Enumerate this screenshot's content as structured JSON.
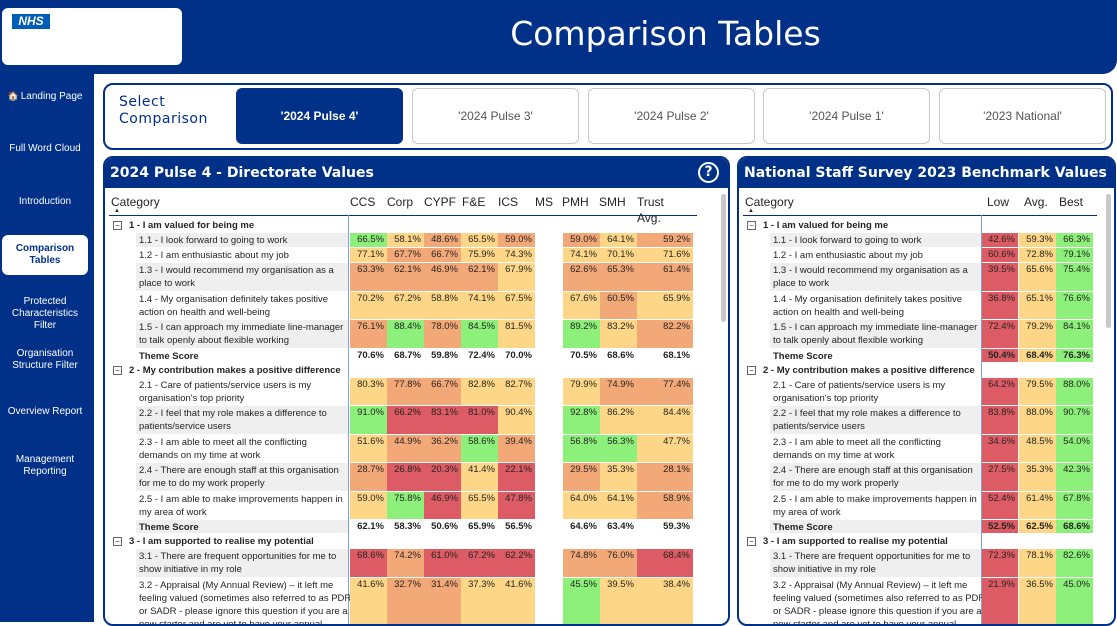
{
  "app": {
    "logo_text": "NHS",
    "title": "Comparison Tables"
  },
  "sidebar": {
    "items": [
      {
        "label": "Landing Page",
        "icon": "home-icon"
      },
      {
        "label": "Full Word Cloud"
      },
      {
        "label": "Introduction"
      },
      {
        "label": "Comparison Tables",
        "active": true
      },
      {
        "label": "Protected Characteristics Filter"
      },
      {
        "label": "Organisation Structure Filter"
      },
      {
        "label": "Overview Report"
      },
      {
        "label": "Management Reporting"
      }
    ]
  },
  "compare": {
    "label": "Select Comparison",
    "options": [
      "'2024 Pulse 4'",
      "'2024 Pulse 3'",
      "'2024 Pulse 2'",
      "'2024 Pulse 1'",
      "'2023 National'"
    ],
    "selected_index": 0
  },
  "colors": {
    "brand": "#003087",
    "green": "#8cf07a",
    "yellow": "#fdd687",
    "orange": "#f3a878",
    "red": "#dd5b64",
    "stripe": "#efefef"
  },
  "left": {
    "title": "2024 Pulse 4 - Directorate Values",
    "columns": [
      "Category",
      "CCS",
      "Corp",
      "CYPF",
      "F&E",
      "ICS",
      "MS",
      "PMH",
      "SMH",
      "Trust Avg."
    ],
    "rows": [
      {
        "type": "theme",
        "label": "1 - I am valued for being me"
      },
      {
        "type": "q",
        "label": [
          "1.1 - I look forward to going to work"
        ],
        "values": [
          "66.5%",
          "58.1%",
          "48.6%",
          "65.5%",
          "59.0%",
          "",
          "59.0%",
          "64.1%",
          "59.2%"
        ],
        "colors": [
          "g",
          "y",
          "o",
          "y",
          "o",
          "",
          "o",
          "y",
          "o"
        ]
      },
      {
        "type": "q",
        "label": [
          "1.2 - I am enthusiastic about my job"
        ],
        "values": [
          "77.1%",
          "67.7%",
          "66.7%",
          "75.9%",
          "74.3%",
          "",
          "74.1%",
          "70.1%",
          "71.6%"
        ],
        "colors": [
          "y",
          "o",
          "o",
          "y",
          "y",
          "",
          "y",
          "y",
          "y"
        ]
      },
      {
        "type": "q",
        "label": [
          "1.3 - I would recommend my organisation as a",
          "place to work"
        ],
        "values": [
          "63.3%",
          "62.1%",
          "46.9%",
          "62.1%",
          "67.9%",
          "",
          "62.6%",
          "65.3%",
          "61.4%"
        ],
        "colors": [
          "o",
          "o",
          "o",
          "o",
          "y",
          "",
          "o",
          "o",
          "o"
        ]
      },
      {
        "type": "q",
        "label": [
          "1.4 - My organisation definitely takes positive",
          "action on health and well-being"
        ],
        "values": [
          "70.2%",
          "67.2%",
          "58.8%",
          "74.1%",
          "67.5%",
          "",
          "67.6%",
          "60.5%",
          "65.9%"
        ],
        "colors": [
          "y",
          "y",
          "y",
          "y",
          "y",
          "",
          "y",
          "o",
          "y"
        ]
      },
      {
        "type": "q",
        "label": [
          "1.5 - I can approach my immediate line-manager",
          "to talk openly about flexible working"
        ],
        "values": [
          "76.1%",
          "88.4%",
          "78.0%",
          "84.5%",
          "81.5%",
          "",
          "89.2%",
          "83.2%",
          "82.2%"
        ],
        "colors": [
          "o",
          "g",
          "o",
          "g",
          "y",
          "",
          "g",
          "y",
          "o"
        ]
      },
      {
        "type": "score",
        "label": [
          "Theme Score"
        ],
        "values": [
          "70.6%",
          "68.7%",
          "59.8%",
          "72.4%",
          "70.0%",
          "",
          "70.5%",
          "68.6%",
          "68.1%"
        ]
      },
      {
        "type": "theme",
        "label": "2 - My contribution makes a positive difference"
      },
      {
        "type": "q",
        "label": [
          "2.1 - Care of patients/service users is my",
          "organisation's top priority"
        ],
        "values": [
          "80.3%",
          "77.8%",
          "66.7%",
          "82.8%",
          "82.7%",
          "",
          "79.9%",
          "74.9%",
          "77.4%"
        ],
        "colors": [
          "y",
          "o",
          "o",
          "y",
          "y",
          "",
          "y",
          "o",
          "o"
        ]
      },
      {
        "type": "q",
        "label": [
          "2.2 - I feel that my role makes a difference to",
          "patients/service users"
        ],
        "values": [
          "91.0%",
          "66.2%",
          "83.1%",
          "81.0%",
          "90.4%",
          "",
          "92.8%",
          "86.2%",
          "84.4%"
        ],
        "colors": [
          "g",
          "r",
          "r",
          "r",
          "y",
          "",
          "g",
          "y",
          "y"
        ]
      },
      {
        "type": "q",
        "label": [
          "2.3 - I am able to meet all the conflicting",
          "demands on my time at work"
        ],
        "values": [
          "51.6%",
          "44.9%",
          "36.2%",
          "58.6%",
          "39.4%",
          "",
          "56.8%",
          "56.3%",
          "47.7%"
        ],
        "colors": [
          "y",
          "o",
          "o",
          "g",
          "o",
          "",
          "g",
          "g",
          "y"
        ]
      },
      {
        "type": "q",
        "label": [
          "2.4 - There are enough staff at this organisation",
          "for me to do my work properly"
        ],
        "values": [
          "28.7%",
          "26.8%",
          "20.3%",
          "41.4%",
          "22.1%",
          "",
          "29.5%",
          "35.3%",
          "28.1%"
        ],
        "colors": [
          "o",
          "r",
          "r",
          "y",
          "r",
          "",
          "o",
          "y",
          "o"
        ]
      },
      {
        "type": "q",
        "label": [
          "2.5 - I am able to make improvements happen in",
          "my area of work"
        ],
        "values": [
          "59.0%",
          "75.8%",
          "46.9%",
          "65.5%",
          "47.8%",
          "",
          "64.0%",
          "64.1%",
          "58.9%"
        ],
        "colors": [
          "y",
          "g",
          "r",
          "y",
          "r",
          "",
          "y",
          "y",
          "o"
        ]
      },
      {
        "type": "score",
        "label": [
          "Theme Score"
        ],
        "values": [
          "62.1%",
          "58.3%",
          "50.6%",
          "65.9%",
          "56.5%",
          "",
          "64.6%",
          "63.4%",
          "59.3%"
        ]
      },
      {
        "type": "theme",
        "label": "3 - I am supported to realise my potential"
      },
      {
        "type": "q",
        "label": [
          "3.1 - There are frequent opportunities for me to",
          "show initiative in my role"
        ],
        "values": [
          "68.6%",
          "74.2%",
          "61.0%",
          "67.2%",
          "62.2%",
          "",
          "74.8%",
          "76.0%",
          "68.4%"
        ],
        "colors": [
          "r",
          "o",
          "r",
          "r",
          "r",
          "",
          "o",
          "o",
          "r"
        ]
      },
      {
        "type": "q",
        "label": [
          "3.2 - Appraisal (My Annual Review) – it left me",
          "feeling valued (sometimes also referred to as PDR",
          "or SADR - please ignore this question if you are a",
          "new starter and are yet to have your annual"
        ],
        "values": [
          "41.6%",
          "32.7%",
          "31.4%",
          "37.3%",
          "41.6%",
          "",
          "45.5%",
          "39.5%",
          "38.4%"
        ],
        "colors": [
          "y",
          "o",
          "o",
          "y",
          "y",
          "",
          "g",
          "y",
          "y"
        ]
      }
    ]
  },
  "right": {
    "title": "National Staff Survey 2023 Benchmark Values",
    "columns": [
      "Category",
      "Low",
      "Avg.",
      "Best"
    ],
    "rows": [
      {
        "type": "theme",
        "label": "1 - I am valued for being me"
      },
      {
        "type": "q",
        "label": [
          "1.1 - I look forward to going to work"
        ],
        "values": [
          "42.6%",
          "59.3%",
          "66.3%"
        ],
        "colors": [
          "r",
          "y",
          "g"
        ]
      },
      {
        "type": "q",
        "label": [
          "1.2 - I am enthusiastic about my job"
        ],
        "values": [
          "60.6%",
          "72.8%",
          "79.1%"
        ],
        "colors": [
          "r",
          "y",
          "g"
        ]
      },
      {
        "type": "q",
        "label": [
          "1.3 - I would recommend my organisation as a",
          "place to work"
        ],
        "values": [
          "39.5%",
          "65.6%",
          "75.4%"
        ],
        "colors": [
          "r",
          "y",
          "g"
        ]
      },
      {
        "type": "q",
        "label": [
          "1.4 - My organisation definitely takes positive",
          "action on health and well-being"
        ],
        "values": [
          "36.8%",
          "65.1%",
          "76.6%"
        ],
        "colors": [
          "r",
          "y",
          "g"
        ]
      },
      {
        "type": "q",
        "label": [
          "1.5 - I can approach my immediate line-manager",
          "to talk openly about flexible working"
        ],
        "values": [
          "72.4%",
          "79.2%",
          "84.1%"
        ],
        "colors": [
          "r",
          "y",
          "g"
        ]
      },
      {
        "type": "score",
        "label": [
          "Theme Score"
        ],
        "values": [
          "50.4%",
          "68.4%",
          "76.3%"
        ],
        "colors": [
          "r",
          "y",
          "g"
        ]
      },
      {
        "type": "theme",
        "label": "2 - My contribution makes a positive difference"
      },
      {
        "type": "q",
        "label": [
          "2.1 - Care of patients/service users is my",
          "organisation's top priority"
        ],
        "values": [
          "64.2%",
          "79.5%",
          "88.0%"
        ],
        "colors": [
          "r",
          "y",
          "g"
        ]
      },
      {
        "type": "q",
        "label": [
          "2.2 - I feel that my role makes a difference to",
          "patients/service users"
        ],
        "values": [
          "83.8%",
          "88.0%",
          "90.7%"
        ],
        "colors": [
          "r",
          "y",
          "g"
        ]
      },
      {
        "type": "q",
        "label": [
          "2.3 - I am able to meet all the conflicting",
          "demands on my time at work"
        ],
        "values": [
          "34.6%",
          "48.5%",
          "54.0%"
        ],
        "colors": [
          "r",
          "y",
          "g"
        ]
      },
      {
        "type": "q",
        "label": [
          "2.4 - There are enough staff at this organisation",
          "for me to do my work properly"
        ],
        "values": [
          "27.5%",
          "35.3%",
          "42.3%"
        ],
        "colors": [
          "r",
          "y",
          "g"
        ]
      },
      {
        "type": "q",
        "label": [
          "2.5 - I am able to make improvements happen in",
          "my area of work"
        ],
        "values": [
          "52.4%",
          "61.4%",
          "67.8%"
        ],
        "colors": [
          "r",
          "y",
          "g"
        ]
      },
      {
        "type": "score",
        "label": [
          "Theme Score"
        ],
        "values": [
          "52.5%",
          "62.5%",
          "68.6%"
        ],
        "colors": [
          "r",
          "y",
          "g"
        ]
      },
      {
        "type": "theme",
        "label": "3 - I am supported to realise my potential"
      },
      {
        "type": "q",
        "label": [
          "3.1 - There are frequent opportunities for me to",
          "show initiative in my role"
        ],
        "values": [
          "72.3%",
          "78.1%",
          "82.6%"
        ],
        "colors": [
          "r",
          "y",
          "g"
        ]
      },
      {
        "type": "q",
        "label": [
          "3.2 - Appraisal (My Annual Review) – it left me",
          "feeling valued (sometimes also referred to as PDR",
          "or SADR - please ignore this question if you are a",
          "new starter and are yet to have your annual"
        ],
        "values": [
          "21.9%",
          "36.5%",
          "45.0%"
        ],
        "colors": [
          "r",
          "y",
          "g"
        ]
      }
    ]
  }
}
